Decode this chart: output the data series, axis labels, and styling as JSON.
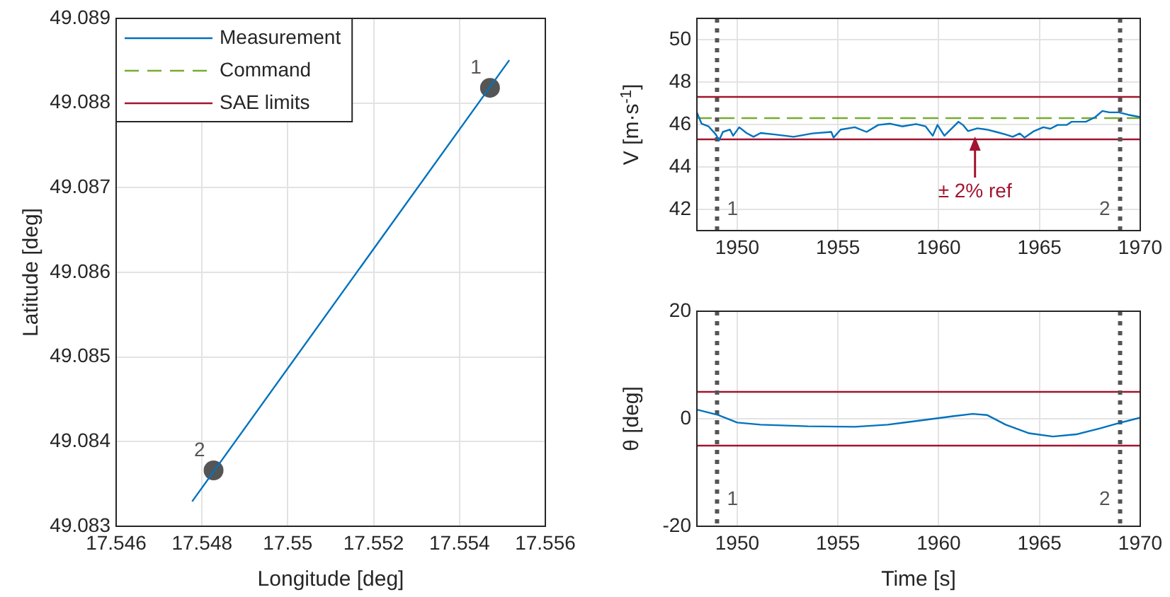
{
  "chart_data": [
    {
      "type": "line",
      "xlabel": "Longitude [deg]",
      "ylabel": "Latitude [deg]",
      "xlim": [
        17.546,
        17.556
      ],
      "xticks": [
        17.546,
        17.548,
        17.55,
        17.552,
        17.554,
        17.556
      ],
      "ylim": [
        49.083,
        49.089
      ],
      "yticks": [
        49.083,
        49.084,
        49.085,
        49.086,
        49.087,
        49.088,
        49.089
      ],
      "grid": true,
      "legend": "top left",
      "series": [
        {
          "name": "Measurement",
          "color": "#0072bd",
          "x": [
            17.54778,
            17.55515
          ],
          "values": [
            49.0833,
            49.0885
          ]
        },
        {
          "name": "Command",
          "color": "#77ac30",
          "line_style": "dashed"
        },
        {
          "name": "SAE limits",
          "color": "#a2142f"
        },
        {
          "type": "scatter",
          "marker": "circle",
          "color": "#555555",
          "x": [
            17.55471,
            17.54827
          ],
          "values": [
            49.08818,
            49.08366
          ]
        }
      ],
      "annotations": [
        {
          "text": "1",
          "x": 17.55471,
          "y": 49.08818
        },
        {
          "text": "2",
          "x": 17.54827,
          "y": 49.08366
        }
      ]
    },
    {
      "type": "line",
      "ylabel": "V [m·s$^{-1}$]",
      "xlim": [
        1948,
        1970
      ],
      "xticks": [
        1950,
        1955,
        1960,
        1965,
        1970
      ],
      "ylim": [
        41,
        51
      ],
      "yticks": [
        42,
        44,
        46,
        48,
        50
      ],
      "grid": true,
      "series": [
        {
          "color": "#0072bd",
          "x": [
            1948,
            1948.23,
            1948.58,
            1948.94,
            1949.1,
            1949.29,
            1949.64,
            1949.8,
            1950.1,
            1950.46,
            1950.81,
            1951.16,
            1951.86,
            1952.8,
            1953.73,
            1954.67,
            1954.78,
            1955.13,
            1955.84,
            1956.42,
            1957,
            1957.59,
            1958.18,
            1958.88,
            1959.35,
            1959.7,
            1959.94,
            1960.28,
            1960.75,
            1960.98,
            1961.2,
            1961.45,
            1961.92,
            1962.39,
            1962.85,
            1963.32,
            1963.67,
            1964.02,
            1964.26,
            1964.73,
            1965.19,
            1965.54,
            1965.9,
            1966.36,
            1966.6,
            1967.3,
            1967.77,
            1968.12,
            1968.47,
            1968.94,
            1969.4,
            1970
          ],
          "values": [
            46.57,
            46.04,
            45.91,
            45.53,
            45.25,
            45.65,
            45.76,
            45.47,
            45.87,
            45.6,
            45.42,
            45.6,
            45.53,
            45.42,
            45.58,
            45.65,
            45.38,
            45.76,
            45.87,
            45.65,
            45.98,
            46.04,
            45.91,
            46.02,
            45.91,
            45.47,
            45.98,
            45.47,
            45.91,
            46.13,
            45.98,
            45.69,
            45.82,
            45.76,
            45.65,
            45.53,
            45.42,
            45.58,
            45.38,
            45.69,
            45.87,
            45.8,
            45.98,
            45.98,
            46.13,
            46.13,
            46.35,
            46.64,
            46.57,
            46.57,
            46.46,
            46.35
          ]
        },
        {
          "color": "#77ac30",
          "line_style": "dashed",
          "x": [
            1948,
            1970
          ],
          "values": [
            46.3,
            46.3
          ]
        }
      ],
      "ref_lines": [
        {
          "axis": "y",
          "value": 47.3,
          "color": "#a2142f"
        },
        {
          "axis": "y",
          "value": 45.3,
          "color": "#a2142f"
        },
        {
          "axis": "x",
          "value": 1949,
          "color": "#555555",
          "line_style": "dotted"
        },
        {
          "axis": "x",
          "value": 1969,
          "color": "#555555",
          "line_style": "dotted"
        }
      ],
      "annotations": [
        {
          "text": "± 2% ref",
          "x": 1961.8,
          "y": 45.5
        },
        {
          "text": "1",
          "x": 1949,
          "y": 42
        },
        {
          "text": "2",
          "x": 1969,
          "y": 42
        }
      ]
    },
    {
      "type": "line",
      "xlabel": "Time [s]",
      "ylabel": "θ [deg]",
      "xlim": [
        1948,
        1970
      ],
      "xticks": [
        1950,
        1955,
        1960,
        1965,
        1970
      ],
      "ylim": [
        -20,
        20
      ],
      "yticks": [
        -20,
        0,
        20
      ],
      "grid": true,
      "series": [
        {
          "color": "#0072bd",
          "x": [
            1948,
            1949.05,
            1950,
            1951.16,
            1953.5,
            1955.84,
            1957.47,
            1959.35,
            1960.75,
            1961.68,
            1962.39,
            1963.32,
            1964.49,
            1965.66,
            1966.83,
            1968,
            1968.94,
            1970
          ],
          "values": [
            1.7,
            0.7,
            -0.7,
            -1.1,
            -1.4,
            -1.5,
            -1.1,
            -0.2,
            0.5,
            0.9,
            0.7,
            -1.1,
            -2.7,
            -3.3,
            -2.9,
            -1.8,
            -0.8,
            0.2
          ]
        }
      ],
      "ref_lines": [
        {
          "axis": "y",
          "value": 5,
          "color": "#a2142f"
        },
        {
          "axis": "y",
          "value": -5,
          "color": "#a2142f"
        },
        {
          "axis": "x",
          "value": 1949,
          "color": "#555555",
          "line_style": "dotted"
        },
        {
          "axis": "x",
          "value": 1969,
          "color": "#555555",
          "line_style": "dotted"
        }
      ],
      "annotations": [
        {
          "text": "1",
          "x": 1949,
          "y": -15
        },
        {
          "text": "2",
          "x": 1969,
          "y": -15
        }
      ]
    }
  ]
}
